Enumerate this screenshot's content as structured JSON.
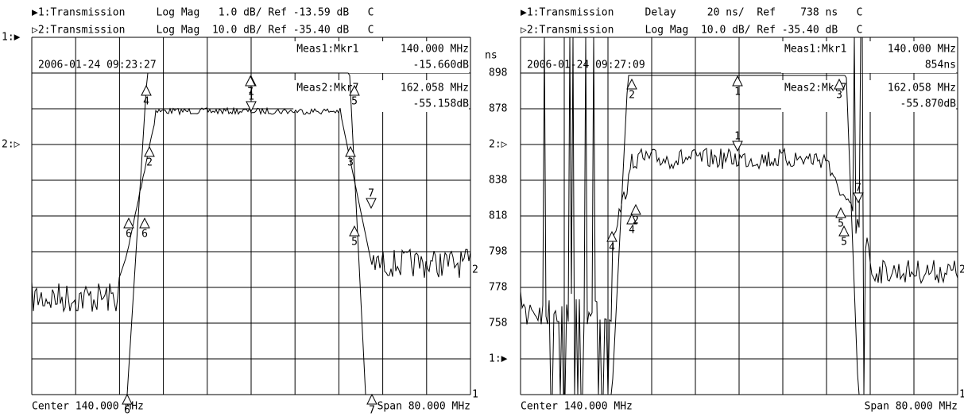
{
  "left": {
    "header": [
      "▶1:Transmission     Log Mag   1.0 dB/ Ref -13.59 dB   C",
      "▷2:Transmission     Log Mag  10.0 dB/ Ref -35.40 dB   C"
    ],
    "ref_labels": [
      "1:▶",
      "2:▷"
    ],
    "timestamp": "2006-01-24 09:23:27",
    "meas1": [
      "Meas1:Mkr1",
      "140.000 MHz",
      "-15.660dB"
    ],
    "meas2": [
      "Meas2:Mkr7",
      "162.058 MHz",
      "-55.158dB"
    ],
    "center": "Center 140.000 MHz",
    "span": "Span 80.000 MHz",
    "trace_ends": [
      "2",
      "1"
    ],
    "markers": [
      "1",
      "1",
      "2",
      "3",
      "4",
      "5",
      "5",
      "6",
      "6",
      "7",
      "7",
      "6",
      "7"
    ]
  },
  "right": {
    "header": [
      "▶1:Transmission     Delay     20 ns/  Ref    738 ns   C",
      "▷2:Transmission     Log Mag  10.0 dB/ Ref -35.40 dB   C"
    ],
    "unit": "ns",
    "y_labels": [
      "898",
      "878",
      "2:▷",
      "838",
      "818",
      "798",
      "778",
      "758",
      "1:▶"
    ],
    "timestamp": "2006-01-24 09:27:09",
    "meas1": [
      "Meas1:Mkr1",
      "140.000 MHz",
      "854ns"
    ],
    "meas2": [
      "Meas2:Mkr7",
      "162.058 MHz",
      "-55.870dB"
    ],
    "center": "Center 140.000 MHz",
    "span": "Span 80.000 MHz",
    "trace_ends": [
      "2",
      "1"
    ],
    "markers": [
      "1",
      "1",
      "2",
      "3",
      "4",
      "5",
      "5",
      "4",
      "2",
      "7"
    ]
  }
}
